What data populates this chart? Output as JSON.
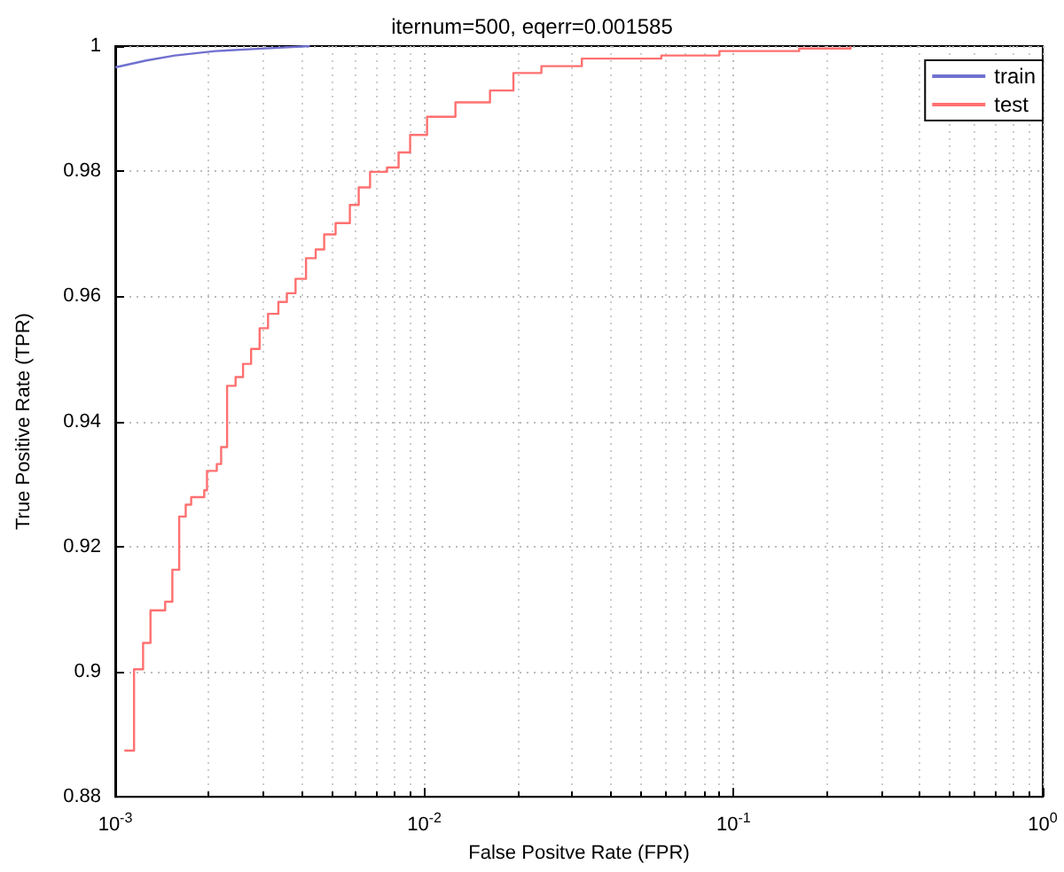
{
  "chart_data": {
    "type": "line",
    "title": "iternum=500, eqerr=0.001585",
    "xlabel": "False Positve Rate (FPR)",
    "ylabel": "True Positive Rate (TPR)",
    "log": "x",
    "grid": true,
    "legend": "top right",
    "marker": "none",
    "line_style": "solid",
    "xlim": [
      0.001,
      1
    ],
    "xticks": [
      {
        "value": 0.001,
        "label": "10$^{-3}$"
      },
      {
        "value": 0.01,
        "label": "10$^{-2}$"
      },
      {
        "value": 0.1,
        "label": "10$^{-1}$"
      },
      {
        "value": 1,
        "label": "10$^{0}$"
      }
    ],
    "ylim": [
      0.88,
      1
    ],
    "yticks": [
      0.88,
      0.9,
      0.92,
      0.94,
      0.96,
      0.98,
      1
    ],
    "series": [
      {
        "name": "train",
        "type": "line",
        "color": "#7070d0",
        "x": [
          0.001,
          0.00126,
          0.00156,
          0.00211,
          0.00297,
          0.00426
        ],
        "values": [
          0.9966,
          0.9977,
          0.9985,
          0.9992,
          0.9996,
          1.0
        ]
      },
      {
        "name": "test",
        "type": "step",
        "color": "#ff7070",
        "x": [
          0.00107,
          0.00115,
          0.00123,
          0.0013,
          0.00145,
          0.00153,
          0.00161,
          0.00169,
          0.00176,
          0.00194,
          0.00198,
          0.00213,
          0.0022,
          0.0023,
          0.00245,
          0.00259,
          0.00275,
          0.00293,
          0.00312,
          0.00337,
          0.00359,
          0.00383,
          0.00414,
          0.00445,
          0.00474,
          0.00516,
          0.00574,
          0.00613,
          0.00667,
          0.00757,
          0.00825,
          0.00899,
          0.0102,
          0.0126,
          0.0163,
          0.0194,
          0.0239,
          0.0323,
          0.0584,
          0.09,
          0.163,
          0.239
        ],
        "values": [
          0.8874,
          0.9004,
          0.9046,
          0.9098,
          0.9112,
          0.9163,
          0.9248,
          0.9267,
          0.9279,
          0.929,
          0.9321,
          0.9332,
          0.9359,
          0.9457,
          0.9471,
          0.9492,
          0.9516,
          0.9549,
          0.9572,
          0.9591,
          0.9605,
          0.9628,
          0.9661,
          0.9675,
          0.9699,
          0.9717,
          0.9746,
          0.9774,
          0.9799,
          0.9806,
          0.983,
          0.9858,
          0.9887,
          0.991,
          0.9929,
          0.9957,
          0.9968,
          0.998,
          0.9985,
          0.9992,
          0.9996,
          1.0
        ]
      }
    ]
  }
}
